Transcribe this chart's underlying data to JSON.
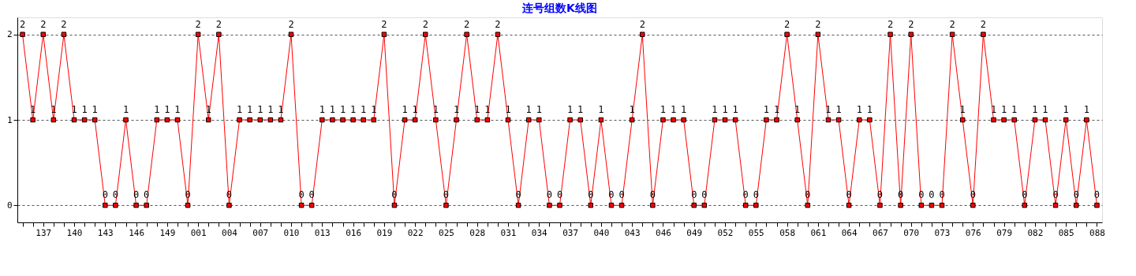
{
  "chart_data": {
    "type": "line",
    "title": "连号组数K线图",
    "categories": [
      null,
      null,
      "137",
      null,
      null,
      "140",
      null,
      null,
      "143",
      null,
      null,
      "146",
      null,
      null,
      "149",
      null,
      null,
      "001",
      null,
      null,
      "004",
      null,
      null,
      "007",
      null,
      null,
      "010",
      null,
      null,
      "013",
      null,
      null,
      "016",
      null,
      null,
      "019",
      null,
      null,
      "022",
      null,
      null,
      "025",
      null,
      null,
      "028",
      null,
      null,
      "031",
      null,
      null,
      "034",
      null,
      null,
      "037",
      null,
      null,
      "040",
      null,
      null,
      "043",
      null,
      null,
      "046",
      null,
      null,
      "049",
      null,
      null,
      "052",
      null,
      null,
      "055",
      null,
      null,
      "058",
      null,
      null,
      "061",
      null,
      null,
      "064",
      null,
      null,
      "067",
      null,
      null,
      "070",
      null,
      null,
      "073",
      null,
      null,
      "076",
      null,
      null,
      "079",
      null,
      null,
      "082",
      null,
      null,
      "085",
      null,
      null,
      "088"
    ],
    "series": [
      {
        "color": "#ff0000",
        "values": [
          2,
          1,
          2,
          1,
          2,
          1,
          1,
          1,
          0,
          0,
          1,
          0,
          0,
          1,
          1,
          1,
          0,
          2,
          1,
          2,
          0,
          1,
          1,
          1,
          1,
          1,
          2,
          0,
          0,
          1,
          1,
          1,
          1,
          1,
          1,
          2,
          0,
          1,
          1,
          2,
          1,
          0,
          1,
          2,
          1,
          1,
          2,
          1,
          0,
          1,
          1,
          0,
          0,
          1,
          1,
          0,
          1,
          0,
          0,
          1,
          2,
          0,
          1,
          1,
          1,
          0,
          0,
          1,
          1,
          1,
          0,
          0,
          1,
          1,
          2,
          1,
          0,
          2,
          1,
          1,
          0,
          1,
          1,
          0,
          2,
          0,
          2,
          0,
          0,
          0,
          2,
          1,
          0,
          2,
          1,
          1,
          1,
          0,
          1,
          1,
          0,
          1,
          0,
          1,
          0
        ]
      }
    ],
    "ylim": [
      -0.2,
      2.2
    ],
    "yticks": [
      0,
      1,
      2
    ],
    "grid": "y",
    "legend": false,
    "marker": "square",
    "line_style": "solid",
    "data_labels": true
  }
}
